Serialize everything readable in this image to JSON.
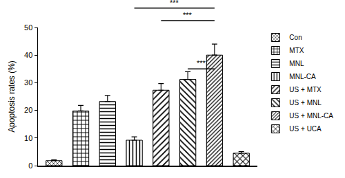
{
  "chart_data": {
    "type": "bar",
    "y_label": "Apoptosis rates (%)",
    "categories": [
      "Con",
      "MTX",
      "MNL",
      "MNL-CA",
      "US + MTX",
      "US + MNL",
      "US + MNL-CA",
      "US + UCA"
    ],
    "values": [
      1.8,
      19.8,
      23.2,
      9.2,
      27.3,
      31.2,
      40.0,
      4.5
    ],
    "errors": [
      0.3,
      2.0,
      2.2,
      1.2,
      2.4,
      2.8,
      4.0,
      0.6
    ],
    "color": "#000000",
    "ylim": [
      0,
      50
    ],
    "yticks": [
      0,
      10,
      20,
      30,
      40,
      50
    ],
    "grid": false,
    "legend": "right",
    "tick_labels": "y",
    "annotations": [
      {
        "text": "***",
        "from": 3,
        "to": 6,
        "y": 57
      },
      {
        "text": "***",
        "from": 4,
        "to": 6,
        "y": 52.5
      },
      {
        "text": "***",
        "from": 5,
        "to": 6,
        "y": 35
      }
    ]
  }
}
